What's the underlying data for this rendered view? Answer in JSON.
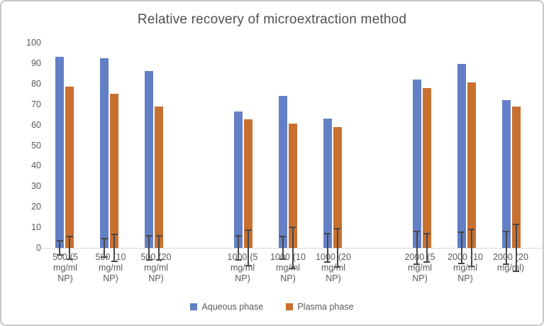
{
  "frame": {
    "background": "#ffffff",
    "border_color": "#c7c7c7"
  },
  "chart_data": {
    "type": "bar",
    "title": "Relative recovery of microextraction method",
    "categories": [
      "500 (5 mg/ml NP)",
      "500 (10 mg/ml NP)",
      "500 (20 mg/ml NP)",
      "1000 (5 mg/ml NP)",
      "1000 (10 mg/ml NP)",
      "1000 (20 mg/ml NP)",
      "2000 (5 mg/ml NP)",
      "2000 (10 mg/ml NP)",
      "2000 (20 mg/ml)"
    ],
    "series": [
      {
        "name": "Aqueous phase",
        "color": "#6380C6",
        "values": [
          93,
          92.5,
          86,
          66.5,
          74,
          63,
          82,
          89.5,
          72
        ],
        "errors": [
          3.5,
          4.5,
          6,
          6,
          5.5,
          7,
          8,
          7.5,
          8
        ]
      },
      {
        "name": "Plasma phase",
        "color": "#C87030",
        "values": [
          78.5,
          75,
          69,
          62.5,
          60.5,
          59,
          78,
          80.5,
          69
        ],
        "errors": [
          5.5,
          6.5,
          6,
          8.5,
          10,
          9.5,
          7,
          9,
          11.5
        ]
      }
    ],
    "ylabel": "",
    "xlabel": "",
    "ylim": [
      0,
      100
    ],
    "ytick_step": 10,
    "grid": false,
    "legend_position": "bottom",
    "cluster_gaps_after": [
      2,
      5
    ],
    "error_bar_color": "#474747",
    "axis_label_color": "#595959",
    "title_color": "#515151",
    "axis_line_color": "#d9d9d9"
  }
}
